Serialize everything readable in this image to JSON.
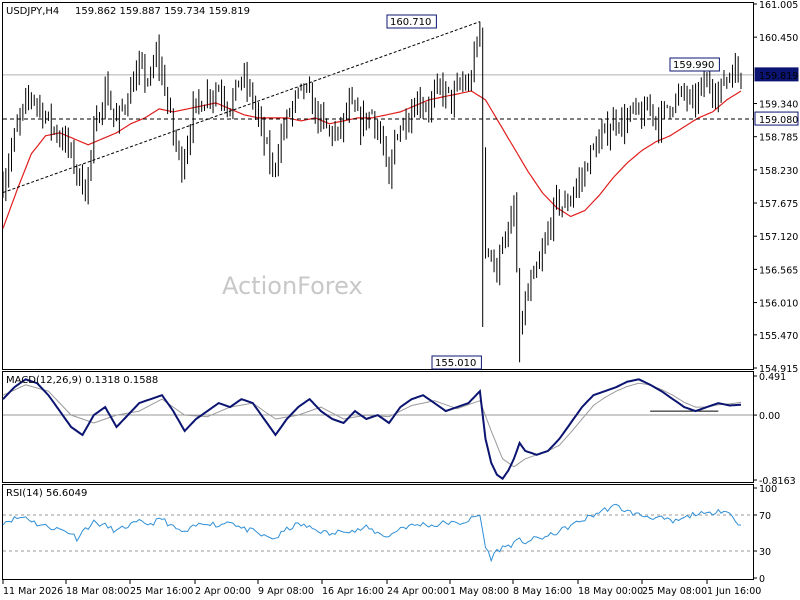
{
  "window": {
    "symbol_header": "USDJPY,H4",
    "ohlc": "159.862 159.887 159.734 159.819",
    "watermark": "ActionForex"
  },
  "colors": {
    "candle": "#000000",
    "sma": "#e11d1d",
    "macd_line": "#0b1470",
    "signal_line": "#9a9a9a",
    "rsi_line": "#2f8fd6",
    "price_tag_bg": "#0b1470",
    "grid_dotted": "#b0b0b0"
  },
  "price_axis": {
    "ticks": [
      "161.005",
      "160.450",
      "159.819",
      "159.340",
      "159.080",
      "158.785",
      "158.230",
      "157.675",
      "157.120",
      "156.565",
      "156.010",
      "155.470",
      "154.915"
    ],
    "current_price": "159.819",
    "level_line": "159.080"
  },
  "annotations": {
    "high_label": "160.710",
    "low_label": "155.010",
    "recent_high_label": "159.990"
  },
  "time_axis": {
    "labels": [
      "11 Mar 2026",
      "18 Mar 08:00",
      "25 Mar 16:00",
      "2 Apr 00:00",
      "9 Apr 08:00",
      "16 Apr 16:00",
      "24 Apr 00:00",
      "1 May 08:00",
      "8 May 16:00",
      "18 May 00:00",
      "25 May 08:00",
      "1 Jun 16:00"
    ]
  },
  "macd": {
    "header": "MACD(12,26,9) 0.1318 0.1588",
    "ticks": [
      "0.491",
      "0.00",
      "-0.8163"
    ]
  },
  "rsi": {
    "header": "RSI(14) 56.6049",
    "ticks": [
      "100",
      "70",
      "30",
      "0"
    ]
  },
  "chart_data": {
    "type": "candlestick",
    "symbol": "USDJPY",
    "timeframe": "H4",
    "ylim": [
      154.915,
      161.005
    ],
    "close_anchors": [
      [
        0,
        158.0
      ],
      [
        3,
        158.6
      ],
      [
        6,
        159.1
      ],
      [
        10,
        159.5
      ],
      [
        14,
        159.2
      ],
      [
        18,
        158.9
      ],
      [
        22,
        158.7
      ],
      [
        26,
        158.2
      ],
      [
        29,
        157.9
      ],
      [
        32,
        158.8
      ],
      [
        36,
        159.6
      ],
      [
        40,
        159.0
      ],
      [
        44,
        159.5
      ],
      [
        48,
        159.9
      ],
      [
        52,
        159.7
      ],
      [
        54,
        160.2
      ],
      [
        57,
        159.6
      ],
      [
        60,
        158.8
      ],
      [
        63,
        158.3
      ],
      [
        67,
        159.2
      ],
      [
        72,
        159.5
      ],
      [
        76,
        159.6
      ],
      [
        80,
        159.3
      ],
      [
        84,
        159.8
      ],
      [
        88,
        159.4
      ],
      [
        92,
        158.7
      ],
      [
        95,
        158.2
      ],
      [
        98,
        158.8
      ],
      [
        102,
        159.3
      ],
      [
        106,
        159.6
      ],
      [
        110,
        159.2
      ],
      [
        114,
        158.9
      ],
      [
        118,
        158.8
      ],
      [
        122,
        159.3
      ],
      [
        126,
        159.0
      ],
      [
        130,
        159.2
      ],
      [
        134,
        158.6
      ],
      [
        136,
        157.9
      ],
      [
        138,
        158.8
      ],
      [
        142,
        159.1
      ],
      [
        146,
        159.4
      ],
      [
        150,
        159.3
      ],
      [
        154,
        159.6
      ],
      [
        158,
        159.4
      ],
      [
        162,
        159.7
      ],
      [
        164,
        159.6
      ],
      [
        166,
        160.1
      ],
      [
        168,
        160.5
      ],
      [
        170,
        156.7
      ],
      [
        172,
        157.0
      ],
      [
        174,
        156.4
      ],
      [
        176,
        157.2
      ],
      [
        178,
        157.1
      ],
      [
        180,
        157.6
      ],
      [
        182,
        155.5
      ],
      [
        184,
        156.0
      ],
      [
        186,
        156.3
      ],
      [
        188,
        156.5
      ],
      [
        190,
        156.8
      ],
      [
        192,
        157.2
      ],
      [
        195,
        157.7
      ],
      [
        198,
        157.6
      ],
      [
        201,
        157.9
      ],
      [
        204,
        158.1
      ],
      [
        207,
        158.5
      ],
      [
        210,
        158.7
      ],
      [
        213,
        158.9
      ],
      [
        216,
        159.1
      ],
      [
        219,
        159.0
      ],
      [
        222,
        159.2
      ],
      [
        225,
        159.1
      ],
      [
        228,
        159.3
      ],
      [
        231,
        159.0
      ],
      [
        234,
        159.3
      ],
      [
        237,
        159.4
      ],
      [
        240,
        159.5
      ],
      [
        243,
        159.3
      ],
      [
        246,
        159.6
      ],
      [
        249,
        159.7
      ],
      [
        252,
        159.5
      ],
      [
        255,
        159.8
      ],
      [
        258,
        159.9
      ],
      [
        260,
        159.8
      ]
    ],
    "sma_anchors": [
      [
        0,
        157.25
      ],
      [
        5,
        157.9
      ],
      [
        10,
        158.5
      ],
      [
        15,
        158.8
      ],
      [
        20,
        158.85
      ],
      [
        25,
        158.75
      ],
      [
        30,
        158.65
      ],
      [
        35,
        158.75
      ],
      [
        40,
        158.85
      ],
      [
        45,
        159.0
      ],
      [
        50,
        159.1
      ],
      [
        55,
        159.25
      ],
      [
        60,
        159.2
      ],
      [
        65,
        159.25
      ],
      [
        70,
        159.3
      ],
      [
        75,
        159.35
      ],
      [
        80,
        159.25
      ],
      [
        85,
        159.15
      ],
      [
        90,
        159.1
      ],
      [
        95,
        159.1
      ],
      [
        100,
        159.1
      ],
      [
        105,
        159.05
      ],
      [
        110,
        159.1
      ],
      [
        115,
        159.0
      ],
      [
        120,
        159.05
      ],
      [
        125,
        159.1
      ],
      [
        130,
        159.1
      ],
      [
        135,
        159.15
      ],
      [
        140,
        159.2
      ],
      [
        145,
        159.3
      ],
      [
        150,
        159.4
      ],
      [
        155,
        159.45
      ],
      [
        160,
        159.5
      ],
      [
        165,
        159.55
      ],
      [
        170,
        159.4
      ],
      [
        175,
        159.0
      ],
      [
        180,
        158.6
      ],
      [
        185,
        158.2
      ],
      [
        190,
        157.85
      ],
      [
        195,
        157.6
      ],
      [
        200,
        157.45
      ],
      [
        205,
        157.55
      ],
      [
        210,
        157.8
      ],
      [
        215,
        158.1
      ],
      [
        220,
        158.35
      ],
      [
        225,
        158.55
      ],
      [
        230,
        158.7
      ],
      [
        235,
        158.8
      ],
      [
        240,
        158.95
      ],
      [
        245,
        159.1
      ],
      [
        250,
        159.2
      ],
      [
        255,
        159.4
      ],
      [
        260,
        159.55
      ]
    ],
    "trendline": {
      "from": [
        0,
        157.85
      ],
      "to": [
        168,
        160.71
      ]
    },
    "macd_anchors": [
      [
        0,
        0.2
      ],
      [
        4,
        0.35
      ],
      [
        8,
        0.45
      ],
      [
        12,
        0.4
      ],
      [
        16,
        0.25
      ],
      [
        20,
        0.05
      ],
      [
        24,
        -0.15
      ],
      [
        28,
        -0.25
      ],
      [
        32,
        0.0
      ],
      [
        36,
        0.1
      ],
      [
        40,
        -0.15
      ],
      [
        44,
        0.0
      ],
      [
        48,
        0.15
      ],
      [
        52,
        0.2
      ],
      [
        56,
        0.25
      ],
      [
        60,
        0.05
      ],
      [
        64,
        -0.2
      ],
      [
        68,
        -0.05
      ],
      [
        72,
        0.05
      ],
      [
        76,
        0.15
      ],
      [
        80,
        0.1
      ],
      [
        84,
        0.2
      ],
      [
        88,
        0.15
      ],
      [
        92,
        -0.05
      ],
      [
        96,
        -0.25
      ],
      [
        100,
        -0.05
      ],
      [
        104,
        0.1
      ],
      [
        108,
        0.2
      ],
      [
        112,
        0.05
      ],
      [
        116,
        -0.05
      ],
      [
        120,
        -0.1
      ],
      [
        124,
        0.05
      ],
      [
        128,
        -0.05
      ],
      [
        132,
        0.0
      ],
      [
        136,
        -0.1
      ],
      [
        140,
        0.1
      ],
      [
        144,
        0.2
      ],
      [
        148,
        0.25
      ],
      [
        152,
        0.15
      ],
      [
        156,
        0.05
      ],
      [
        160,
        0.1
      ],
      [
        164,
        0.15
      ],
      [
        168,
        0.3
      ],
      [
        170,
        -0.3
      ],
      [
        172,
        -0.6
      ],
      [
        174,
        -0.75
      ],
      [
        176,
        -0.8
      ],
      [
        178,
        -0.7
      ],
      [
        180,
        -0.55
      ],
      [
        182,
        -0.35
      ],
      [
        184,
        -0.45
      ],
      [
        188,
        -0.5
      ],
      [
        192,
        -0.45
      ],
      [
        196,
        -0.3
      ],
      [
        200,
        -0.1
      ],
      [
        204,
        0.1
      ],
      [
        208,
        0.25
      ],
      [
        212,
        0.3
      ],
      [
        216,
        0.35
      ],
      [
        220,
        0.42
      ],
      [
        224,
        0.45
      ],
      [
        228,
        0.38
      ],
      [
        232,
        0.3
      ],
      [
        236,
        0.2
      ],
      [
        240,
        0.1
      ],
      [
        244,
        0.05
      ],
      [
        248,
        0.1
      ],
      [
        252,
        0.15
      ],
      [
        256,
        0.12
      ],
      [
        260,
        0.13
      ]
    ],
    "signal_anchors": [
      [
        0,
        0.25
      ],
      [
        8,
        0.38
      ],
      [
        16,
        0.3
      ],
      [
        24,
        0.0
      ],
      [
        32,
        -0.1
      ],
      [
        40,
        0.0
      ],
      [
        48,
        0.05
      ],
      [
        56,
        0.2
      ],
      [
        64,
        0.0
      ],
      [
        72,
        -0.02
      ],
      [
        80,
        0.1
      ],
      [
        88,
        0.15
      ],
      [
        96,
        -0.05
      ],
      [
        104,
        0.0
      ],
      [
        112,
        0.1
      ],
      [
        120,
        -0.05
      ],
      [
        128,
        0.0
      ],
      [
        136,
        -0.02
      ],
      [
        144,
        0.12
      ],
      [
        152,
        0.18
      ],
      [
        160,
        0.08
      ],
      [
        168,
        0.18
      ],
      [
        172,
        -0.2
      ],
      [
        176,
        -0.55
      ],
      [
        180,
        -0.65
      ],
      [
        184,
        -0.55
      ],
      [
        188,
        -0.5
      ],
      [
        192,
        -0.45
      ],
      [
        196,
        -0.38
      ],
      [
        200,
        -0.22
      ],
      [
        204,
        -0.05
      ],
      [
        208,
        0.12
      ],
      [
        212,
        0.22
      ],
      [
        216,
        0.3
      ],
      [
        220,
        0.36
      ],
      [
        224,
        0.4
      ],
      [
        228,
        0.38
      ],
      [
        232,
        0.32
      ],
      [
        236,
        0.25
      ],
      [
        240,
        0.16
      ],
      [
        244,
        0.1
      ],
      [
        248,
        0.1
      ],
      [
        252,
        0.13
      ],
      [
        256,
        0.14
      ],
      [
        260,
        0.16
      ]
    ],
    "rsi_anchors": [
      [
        0,
        62
      ],
      [
        4,
        66
      ],
      [
        8,
        68
      ],
      [
        12,
        60
      ],
      [
        16,
        57
      ],
      [
        20,
        54
      ],
      [
        24,
        50
      ],
      [
        26,
        44
      ],
      [
        28,
        52
      ],
      [
        32,
        62
      ],
      [
        36,
        58
      ],
      [
        40,
        52
      ],
      [
        44,
        58
      ],
      [
        48,
        62
      ],
      [
        52,
        60
      ],
      [
        56,
        66
      ],
      [
        60,
        56
      ],
      [
        64,
        50
      ],
      [
        68,
        58
      ],
      [
        72,
        62
      ],
      [
        76,
        58
      ],
      [
        80,
        64
      ],
      [
        84,
        55
      ],
      [
        88,
        52
      ],
      [
        92,
        46
      ],
      [
        96,
        44
      ],
      [
        100,
        54
      ],
      [
        104,
        60
      ],
      [
        108,
        56
      ],
      [
        112,
        52
      ],
      [
        116,
        48
      ],
      [
        120,
        54
      ],
      [
        124,
        52
      ],
      [
        128,
        56
      ],
      [
        132,
        50
      ],
      [
        136,
        46
      ],
      [
        140,
        56
      ],
      [
        144,
        58
      ],
      [
        148,
        60
      ],
      [
        152,
        58
      ],
      [
        156,
        62
      ],
      [
        160,
        60
      ],
      [
        164,
        64
      ],
      [
        168,
        70
      ],
      [
        170,
        34
      ],
      [
        172,
        22
      ],
      [
        174,
        30
      ],
      [
        176,
        34
      ],
      [
        178,
        36
      ],
      [
        180,
        38
      ],
      [
        182,
        42
      ],
      [
        184,
        40
      ],
      [
        188,
        44
      ],
      [
        192,
        46
      ],
      [
        196,
        52
      ],
      [
        200,
        58
      ],
      [
        204,
        64
      ],
      [
        208,
        70
      ],
      [
        212,
        76
      ],
      [
        216,
        80
      ],
      [
        220,
        74
      ],
      [
        224,
        70
      ],
      [
        228,
        68
      ],
      [
        232,
        66
      ],
      [
        236,
        62
      ],
      [
        240,
        66
      ],
      [
        244,
        72
      ],
      [
        248,
        70
      ],
      [
        252,
        76
      ],
      [
        256,
        72
      ],
      [
        260,
        57
      ]
    ],
    "rsi_levels": [
      70,
      30
    ],
    "macd_ylim": [
      -0.8163,
      0.491
    ],
    "rsi_ylim": [
      0,
      100
    ],
    "horizontal_lines": [
      159.08
    ],
    "annotated_high": 160.71,
    "annotated_low": 155.01,
    "annotated_recent_high": 159.99,
    "bar_count": 261
  }
}
